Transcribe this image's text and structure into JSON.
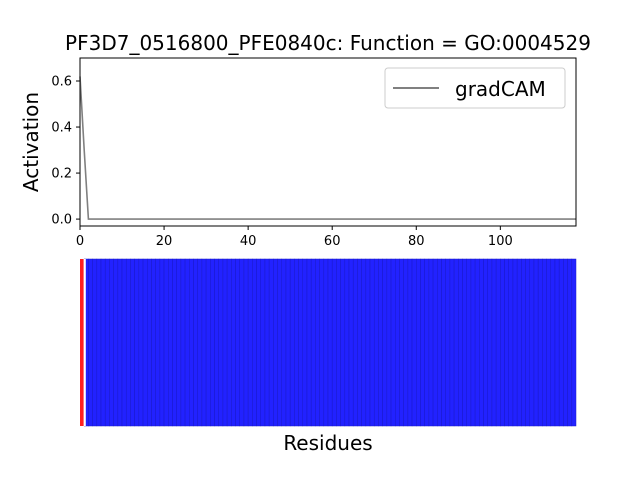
{
  "chart_data": [
    {
      "type": "line",
      "title": "PF3D7_0516800_PFE0840c: Function = GO:0004529",
      "xlabel": "",
      "ylabel": "Activation",
      "xlim": [
        0,
        118
      ],
      "ylim": [
        -0.03,
        0.7
      ],
      "x_ticks": [
        0,
        20,
        40,
        60,
        80,
        100
      ],
      "x_tick_labels": [
        "0",
        "20",
        "40",
        "60",
        "80",
        "100"
      ],
      "y_ticks": [
        0.0,
        0.2,
        0.4,
        0.6
      ],
      "y_tick_labels": [
        "0.0",
        "0.2",
        "0.4",
        "0.6"
      ],
      "legend": {
        "position": "top-right",
        "entries": [
          "gradCAM"
        ]
      },
      "grid": false,
      "series": [
        {
          "name": "gradCAM",
          "color": "#808080",
          "x": [
            0,
            1,
            2,
            118
          ],
          "y": [
            0.62,
            0.3,
            0.0,
            0.0
          ]
        }
      ]
    },
    {
      "type": "heatmap",
      "xlabel": "Residues",
      "residue_count": 118,
      "highlight_color": "#ff2020",
      "base_color": "#2222ff",
      "highlighted_residues": [
        0
      ]
    }
  ]
}
